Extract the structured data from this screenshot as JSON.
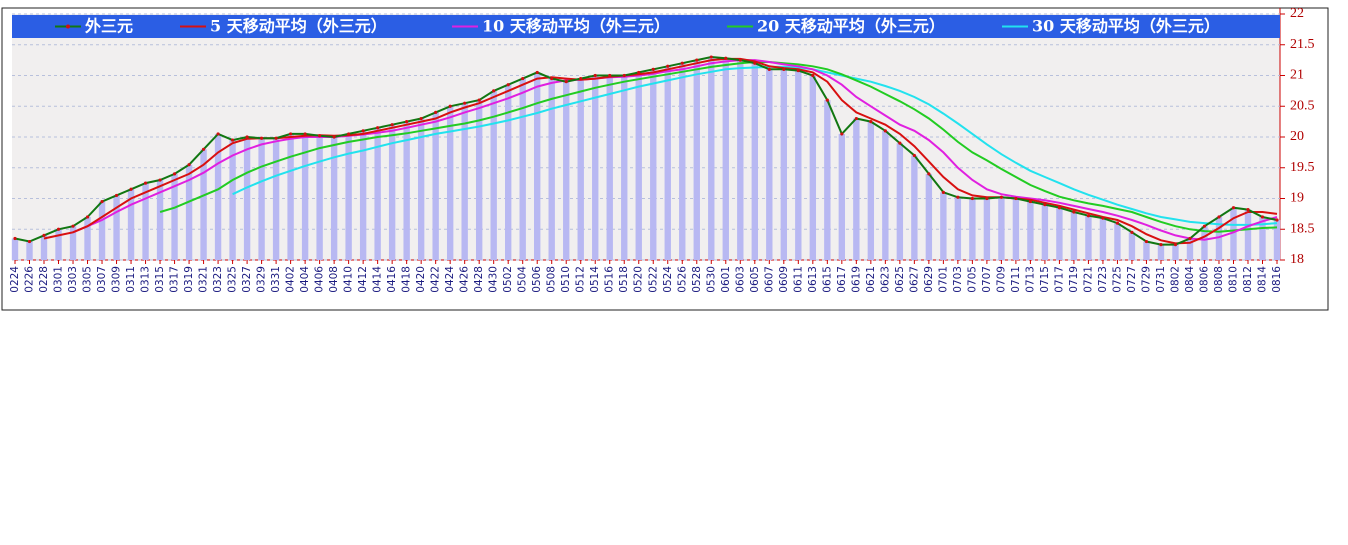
{
  "chart_data": {
    "type": "line",
    "legend_position": "top",
    "grid": true,
    "bar_color": "#b8b8f2",
    "categories": [
      "0224",
      "0226",
      "0228",
      "0301",
      "0303",
      "0305",
      "0307",
      "0309",
      "0311",
      "0313",
      "0315",
      "0317",
      "0319",
      "0321",
      "0323",
      "0325",
      "0327",
      "0329",
      "0331",
      "0402",
      "0404",
      "0406",
      "0408",
      "0410",
      "0412",
      "0414",
      "0416",
      "0418",
      "0420",
      "0422",
      "0424",
      "0426",
      "0428",
      "0430",
      "0502",
      "0504",
      "0506",
      "0508",
      "0510",
      "0512",
      "0514",
      "0516",
      "0518",
      "0520",
      "0522",
      "0524",
      "0526",
      "0528",
      "0530",
      "0601",
      "0603",
      "0605",
      "0607",
      "0609",
      "0611",
      "0613",
      "0615",
      "0617",
      "0619",
      "0621",
      "0623",
      "0625",
      "0627",
      "0629",
      "0701",
      "0703",
      "0705",
      "0707",
      "0709",
      "0711",
      "0713",
      "0715",
      "0717",
      "0719",
      "0721",
      "0723",
      "0725",
      "0727",
      "0729",
      "0731",
      "0802",
      "0804",
      "0806",
      "0808",
      "0810",
      "0812",
      "0814",
      "0816"
    ],
    "ylim": [
      18,
      22
    ],
    "yticks": [
      18,
      18.5,
      19,
      19.5,
      20,
      20.5,
      21,
      21.5,
      22
    ],
    "series": [
      {
        "name": "外三元",
        "color": "#117711",
        "values": [
          18.35,
          18.3,
          18.4,
          18.5,
          18.55,
          18.7,
          18.95,
          19.05,
          19.15,
          19.25,
          19.3,
          19.4,
          19.55,
          19.8,
          20.05,
          19.95,
          20.0,
          19.98,
          19.98,
          20.05,
          20.05,
          20.02,
          20.0,
          20.05,
          20.1,
          20.15,
          20.2,
          20.25,
          20.3,
          20.4,
          20.5,
          20.55,
          20.6,
          20.75,
          20.85,
          20.95,
          21.05,
          20.95,
          20.9,
          20.95,
          21.0,
          21.0,
          21.0,
          21.05,
          21.1,
          21.15,
          21.2,
          21.25,
          21.3,
          21.28,
          21.25,
          21.2,
          21.1,
          21.1,
          21.08,
          21.0,
          20.6,
          20.05,
          20.3,
          20.25,
          20.1,
          19.9,
          19.7,
          19.4,
          19.1,
          19.02,
          19.0,
          19.0,
          19.02,
          19.0,
          18.95,
          18.9,
          18.85,
          18.78,
          18.72,
          18.68,
          18.6,
          18.45,
          18.3,
          18.25,
          18.25,
          18.35,
          18.55,
          18.7,
          18.85,
          18.82,
          18.7,
          18.65
        ]
      },
      {
        "name": "5 天移动平均（外三元）",
        "color": "#d81010",
        "values": [
          null,
          null,
          18.35,
          18.4,
          18.45,
          18.55,
          18.7,
          18.85,
          19.0,
          19.1,
          19.2,
          19.3,
          19.4,
          19.55,
          19.75,
          19.9,
          19.97,
          19.98,
          19.98,
          20.0,
          20.02,
          20.03,
          20.02,
          20.03,
          20.05,
          20.1,
          20.15,
          20.2,
          20.25,
          20.3,
          20.4,
          20.48,
          20.55,
          20.65,
          20.75,
          20.85,
          20.95,
          20.97,
          20.95,
          20.93,
          20.95,
          20.98,
          21.0,
          21.02,
          21.05,
          21.1,
          21.15,
          21.2,
          21.25,
          21.27,
          21.27,
          21.23,
          21.15,
          21.12,
          21.1,
          21.05,
          20.9,
          20.6,
          20.4,
          20.3,
          20.2,
          20.05,
          19.85,
          19.6,
          19.35,
          19.15,
          19.05,
          19.02,
          19.02,
          19.0,
          18.98,
          18.93,
          18.88,
          18.82,
          18.76,
          18.7,
          18.65,
          18.55,
          18.42,
          18.32,
          18.27,
          18.28,
          18.38,
          18.52,
          18.68,
          18.78,
          18.78,
          18.75
        ]
      },
      {
        "name": "10 天移动平均（外三元）",
        "color": "#e020e0",
        "values": [
          null,
          null,
          null,
          null,
          18.45,
          18.55,
          18.65,
          18.78,
          18.9,
          19.0,
          19.1,
          19.2,
          19.3,
          19.42,
          19.57,
          19.7,
          19.8,
          19.88,
          19.93,
          19.97,
          20.0,
          20.0,
          20.0,
          20.02,
          20.04,
          20.07,
          20.1,
          20.15,
          20.2,
          20.25,
          20.32,
          20.4,
          20.47,
          20.55,
          20.63,
          20.72,
          20.82,
          20.88,
          20.92,
          20.93,
          20.95,
          20.97,
          20.98,
          21.0,
          21.03,
          21.07,
          21.1,
          21.15,
          21.2,
          21.23,
          21.25,
          21.25,
          21.22,
          21.18,
          21.15,
          21.1,
          21.0,
          20.85,
          20.65,
          20.5,
          20.35,
          20.2,
          20.1,
          19.95,
          19.75,
          19.5,
          19.3,
          19.15,
          19.07,
          19.03,
          19.0,
          18.97,
          18.93,
          18.88,
          18.83,
          18.78,
          18.72,
          18.65,
          18.57,
          18.48,
          18.4,
          18.35,
          18.33,
          18.37,
          18.45,
          18.55,
          18.63,
          18.7
        ]
      },
      {
        "name": "20 天移动平均（外三元）",
        "color": "#22cc22",
        "values": [
          null,
          null,
          null,
          null,
          null,
          null,
          null,
          null,
          null,
          null,
          18.78,
          18.85,
          18.95,
          19.05,
          19.15,
          19.3,
          19.42,
          19.52,
          19.6,
          19.68,
          19.75,
          19.82,
          19.87,
          19.92,
          19.96,
          20.0,
          20.03,
          20.06,
          20.1,
          20.14,
          20.18,
          20.22,
          20.27,
          20.33,
          20.4,
          20.47,
          20.55,
          20.62,
          20.68,
          20.74,
          20.8,
          20.85,
          20.9,
          20.94,
          20.98,
          21.02,
          21.06,
          21.1,
          21.14,
          21.17,
          21.2,
          21.22,
          21.22,
          21.2,
          21.18,
          21.15,
          21.1,
          21.02,
          20.92,
          20.82,
          20.7,
          20.58,
          20.45,
          20.3,
          20.12,
          19.92,
          19.75,
          19.62,
          19.48,
          19.35,
          19.22,
          19.12,
          19.03,
          18.97,
          18.92,
          18.88,
          18.83,
          18.78,
          18.7,
          18.62,
          18.55,
          18.5,
          18.47,
          18.46,
          18.48,
          18.5,
          18.52,
          18.53
        ]
      },
      {
        "name": "30 天移动平均（外三元）",
        "color": "#22e2ee",
        "values": [
          null,
          null,
          null,
          null,
          null,
          null,
          null,
          null,
          null,
          null,
          null,
          null,
          null,
          null,
          null,
          19.07,
          19.18,
          19.28,
          19.37,
          19.45,
          19.53,
          19.6,
          19.67,
          19.73,
          19.78,
          19.84,
          19.9,
          19.95,
          20.0,
          20.05,
          20.09,
          20.13,
          20.17,
          20.22,
          20.27,
          20.33,
          20.39,
          20.46,
          20.52,
          20.58,
          20.64,
          20.7,
          20.76,
          20.82,
          20.87,
          20.92,
          20.97,
          21.02,
          21.06,
          21.1,
          21.12,
          21.13,
          21.14,
          21.14,
          21.13,
          21.1,
          21.05,
          21.0,
          20.95,
          20.9,
          20.83,
          20.75,
          20.65,
          20.53,
          20.38,
          20.22,
          20.05,
          19.88,
          19.72,
          19.58,
          19.45,
          19.35,
          19.25,
          19.15,
          19.06,
          18.98,
          18.9,
          18.83,
          18.76,
          18.7,
          18.66,
          18.62,
          18.6,
          18.58,
          18.57,
          18.57,
          18.58,
          18.6
        ]
      }
    ]
  }
}
